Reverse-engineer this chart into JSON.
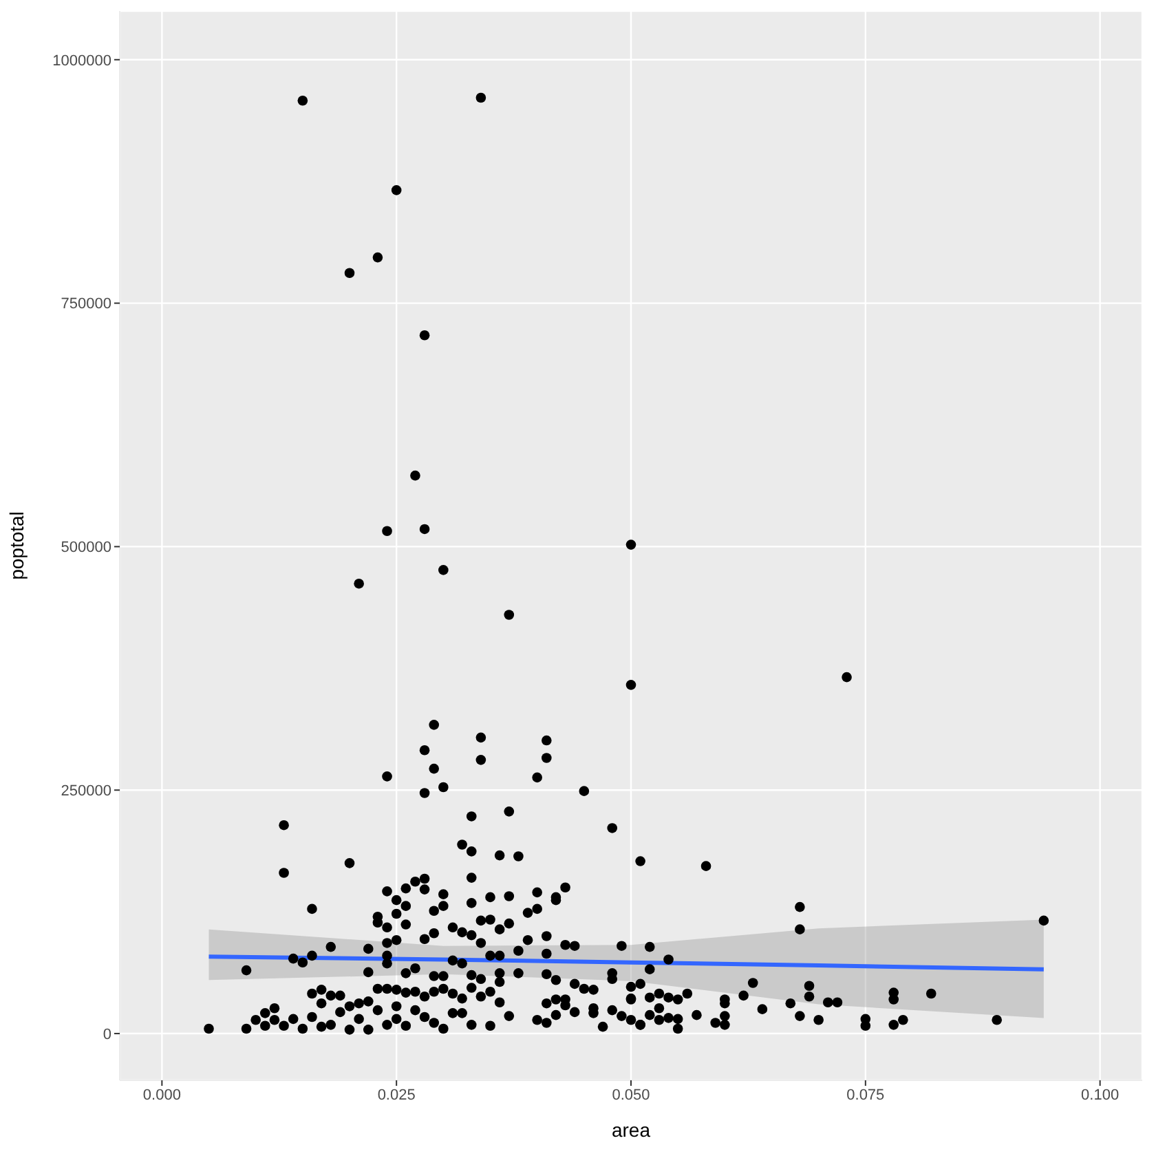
{
  "chart_data": {
    "type": "scatter",
    "xlabel": "area",
    "ylabel": "poptotal",
    "xlim": [
      -0.0045,
      0.1045
    ],
    "ylim": [
      -48000,
      1050000
    ],
    "xticks": [
      {
        "value": 0,
        "label": "0.000"
      },
      {
        "value": 0.025,
        "label": "0.025"
      },
      {
        "value": 0.05,
        "label": "0.050"
      },
      {
        "value": 0.075,
        "label": "0.075"
      },
      {
        "value": 0.1,
        "label": "0.100"
      }
    ],
    "yticks": [
      0,
      250000,
      500000,
      750000,
      1000000
    ],
    "grid": true,
    "series": [
      {
        "marker": "circle",
        "color": "#000000",
        "x": [
          0.015,
          0.034,
          0.025,
          0.023,
          0.02,
          0.028,
          0.027,
          0.024,
          0.028,
          0.021,
          0.03,
          0.05,
          0.037,
          0.05,
          0.073,
          0.029,
          0.034,
          0.041,
          0.028,
          0.034,
          0.041,
          0.029,
          0.024,
          0.04,
          0.03,
          0.028,
          0.045,
          0.037,
          0.013,
          0.013,
          0.02,
          0.016,
          0.033,
          0.048,
          0.032,
          0.033,
          0.036,
          0.038,
          0.033,
          0.051,
          0.024,
          0.026,
          0.027,
          0.028,
          0.028,
          0.025,
          0.026,
          0.025,
          0.023,
          0.023,
          0.026,
          0.024,
          0.03,
          0.03,
          0.029,
          0.033,
          0.035,
          0.037,
          0.037,
          0.034,
          0.035,
          0.036,
          0.039,
          0.04,
          0.04,
          0.042,
          0.042,
          0.043,
          0.031,
          0.032,
          0.033,
          0.029,
          0.028,
          0.025,
          0.024,
          0.034,
          0.039,
          0.041,
          0.043,
          0.044,
          0.049,
          0.018,
          0.009,
          0.014,
          0.015,
          0.016,
          0.022,
          0.022,
          0.024,
          0.024,
          0.026,
          0.027,
          0.029,
          0.031,
          0.032,
          0.033,
          0.035,
          0.036,
          0.036,
          0.038,
          0.038,
          0.041,
          0.041,
          0.042,
          0.044,
          0.045,
          0.046,
          0.048,
          0.048,
          0.05,
          0.005,
          0.009,
          0.01,
          0.011,
          0.012,
          0.012,
          0.011,
          0.013,
          0.014,
          0.015,
          0.016,
          0.016,
          0.017,
          0.017,
          0.017,
          0.018,
          0.019,
          0.019,
          0.018,
          0.02,
          0.02,
          0.021,
          0.021,
          0.022,
          0.022,
          0.023,
          0.023,
          0.024,
          0.024,
          0.025,
          0.025,
          0.025,
          0.026,
          0.026,
          0.027,
          0.027,
          0.028,
          0.028,
          0.029,
          0.029,
          0.03,
          0.03,
          0.03,
          0.031,
          0.031,
          0.032,
          0.032,
          0.033,
          0.033,
          0.034,
          0.034,
          0.035,
          0.035,
          0.036,
          0.036,
          0.037,
          0.04,
          0.041,
          0.041,
          0.042,
          0.042,
          0.043,
          0.043,
          0.044,
          0.046,
          0.046,
          0.047,
          0.048,
          0.049,
          0.05,
          0.05,
          0.051,
          0.058,
          0.068,
          0.068,
          0.094,
          0.052,
          0.054,
          0.052,
          0.051,
          0.05,
          0.052,
          0.053,
          0.054,
          0.055,
          0.056,
          0.053,
          0.052,
          0.054,
          0.055,
          0.057,
          0.055,
          0.053,
          0.051,
          0.06,
          0.06,
          0.06,
          0.059,
          0.06,
          0.062,
          0.063,
          0.064,
          0.067,
          0.068,
          0.069,
          0.069,
          0.07,
          0.071,
          0.072,
          0.075,
          0.075,
          0.078,
          0.078,
          0.078,
          0.079,
          0.082,
          0.089
        ],
        "values": [
          958000,
          961000,
          866000,
          797000,
          781000,
          717000,
          573000,
          516000,
          518000,
          462000,
          476000,
          502000,
          430000,
          358000,
          366000,
          317000,
          304000,
          301000,
          291000,
          281000,
          283000,
          272000,
          264000,
          263000,
          253000,
          247000,
          249000,
          228000,
          214000,
          165000,
          175000,
          128000,
          223000,
          211000,
          194000,
          187000,
          183000,
          182000,
          160000,
          177000,
          146000,
          149000,
          156000,
          159000,
          148000,
          137000,
          131000,
          123000,
          120000,
          114000,
          112000,
          109000,
          143000,
          131000,
          126000,
          134000,
          140000,
          141000,
          113000,
          116000,
          117000,
          107000,
          124000,
          145000,
          128000,
          140000,
          137000,
          150000,
          109000,
          104000,
          101000,
          103000,
          97000,
          96000,
          93000,
          93000,
          96000,
          100000,
          91000,
          90000,
          90000,
          89000,
          65000,
          77000,
          73000,
          80000,
          87000,
          63000,
          80000,
          72000,
          62000,
          67000,
          59000,
          75000,
          72000,
          60000,
          80000,
          80000,
          62000,
          85000,
          62000,
          82000,
          61000,
          55000,
          51000,
          46000,
          45000,
          62000,
          56000,
          48000,
          5000,
          5000,
          14000,
          21000,
          26000,
          14000,
          8000,
          8000,
          15000,
          5000,
          41000,
          17000,
          45000,
          31000,
          7000,
          39000,
          39000,
          22000,
          9000,
          28000,
          4000,
          31000,
          15000,
          33000,
          4000,
          46000,
          24000,
          46000,
          9000,
          45000,
          28000,
          15000,
          42000,
          8000,
          43000,
          24000,
          38000,
          17000,
          43000,
          11000,
          59000,
          46000,
          5000,
          41000,
          21000,
          36000,
          21000,
          47000,
          9000,
          56000,
          38000,
          43000,
          8000,
          53000,
          32000,
          18000,
          14000,
          31000,
          11000,
          35000,
          19000,
          35000,
          29000,
          22000,
          26000,
          21000,
          7000,
          24000,
          18000,
          14000,
          35000,
          9000,
          172000,
          130000,
          107000,
          116000,
          89000,
          76000,
          66000,
          51000,
          36000,
          37000,
          41000,
          37000,
          35000,
          41000,
          26000,
          19000,
          16000,
          15000,
          19000,
          5000,
          14000,
          9000,
          35000,
          31000,
          18000,
          11000,
          9000,
          39000,
          52000,
          25000,
          31000,
          18000,
          49000,
          38000,
          14000,
          32000,
          32000,
          15000,
          8000,
          42000,
          35000,
          9000,
          14000,
          41000,
          14000
        ]
      },
      {
        "type": "line",
        "marker": "none",
        "color": "#3366ff",
        "x": [
          0.005,
          0.03,
          0.05,
          0.07,
          0.094
        ],
        "values": [
          79000,
          76000,
          73000,
          70000,
          66000
        ],
        "lower": [
          55000,
          61000,
          54000,
          30000,
          16000
        ],
        "upper": [
          107000,
          90000,
          91000,
          108000,
          117000
        ]
      }
    ]
  }
}
